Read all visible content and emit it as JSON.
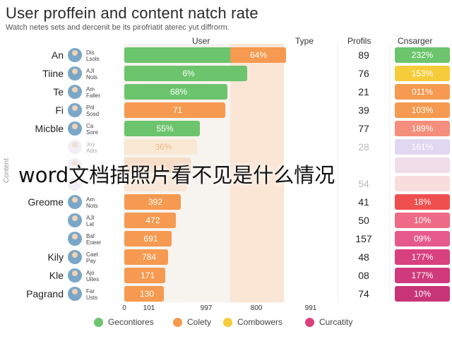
{
  "chart_data": {
    "type": "bar",
    "title": "User proffein and content natch rate",
    "subtitle": "Watch netes sets and dercenit be its pirofriatit aterec yut diffrorm.",
    "columns": {
      "user": "User",
      "type": "Type",
      "profile": "Profils",
      "category": "Cnsarger"
    },
    "ylabel": "Content",
    "x_ticks": [
      "0",
      "101",
      "997",
      "800",
      "991"
    ],
    "rows": [
      {
        "label": "An",
        "name": "Dis Lsols",
        "value": "",
        "overlay": "64%",
        "profile": "89",
        "badge": "232%",
        "bar_color": "#6cc46c",
        "badge_color": "#6cc46c"
      },
      {
        "label": "Tiine",
        "name": "AJI Nols",
        "value": "6%",
        "overlay": "",
        "profile": "76",
        "badge": "153%",
        "bar_color": "#6cc46c",
        "badge_color": "#f7cc3a"
      },
      {
        "label": "Te",
        "name": "Am Faller",
        "value": "68%",
        "overlay": "",
        "profile": "21",
        "badge": "011%",
        "bar_color": "#6cc46c",
        "badge_color": "#f59a50"
      },
      {
        "label": "Fi",
        "name": "Pril Sosd",
        "value": "71",
        "overlay": "",
        "profile": "39",
        "badge": "103%",
        "bar_color": "#f59a50",
        "badge_color": "#f59a50"
      },
      {
        "label": "Micble",
        "name": "Ca Sore",
        "value": "55%",
        "overlay": "",
        "profile": "77",
        "badge": "189%",
        "bar_color": "#6cc46c",
        "badge_color": "#f58e7c"
      },
      {
        "label": "",
        "name": "Joy Adis",
        "value": "36%",
        "overlay": "",
        "profile": "28",
        "badge": "161%",
        "bar_color": "#fbe0c0",
        "badge_color": "#cdbde8"
      },
      {
        "label": "",
        "name": "",
        "value": "",
        "overlay": "",
        "profile": "",
        "badge": "",
        "bar_color": "#f7c9a6",
        "badge_color": "#e8c4dc"
      },
      {
        "label": "",
        "name": "",
        "value": "",
        "overlay": "",
        "profile": "54",
        "badge": "",
        "bar_color": "#f9dcc4",
        "badge_color": "#f3c6c6"
      },
      {
        "label": "Greome",
        "name": "Am Nots",
        "value": "392",
        "overlay": "",
        "profile": "41",
        "badge": "18%",
        "bar_color": "#f59a50",
        "badge_color": "#ef4f4f"
      },
      {
        "label": "",
        "name": "AJI Lat",
        "value": "472",
        "overlay": "",
        "profile": "50",
        "badge": "10%",
        "bar_color": "#f59a50",
        "badge_color": "#ef6a86"
      },
      {
        "label": "",
        "name": "Baf Eoeer",
        "value": "691",
        "overlay": "",
        "profile": "157",
        "badge": "09%",
        "bar_color": "#f59a50",
        "badge_color": "#e55a8a"
      },
      {
        "label": "Kily",
        "name": "Caet Pay",
        "value": "784",
        "overlay": "",
        "profile": "48",
        "badge": "177%",
        "bar_color": "#f59a50",
        "badge_color": "#d9407e"
      },
      {
        "label": "Kle",
        "name": "Ajo Uites",
        "value": "171",
        "overlay": "",
        "profile": "08",
        "badge": "177%",
        "bar_color": "#f59a50",
        "badge_color": "#d03a7c"
      },
      {
        "label": "Pagrand",
        "name": "Far Usts",
        "value": "130",
        "overlay": "",
        "profile": "74",
        "badge": "10%",
        "bar_color": "#f59a50",
        "badge_color": "#c83478"
      }
    ],
    "legend": [
      {
        "name": "Gecontiores",
        "color": "#6cc46c"
      },
      {
        "name": "Colety",
        "color": "#f59a50"
      },
      {
        "name": "Combowers",
        "color": "#f7cc3a"
      },
      {
        "name": "Curcatity",
        "color": "#d9407e"
      }
    ]
  },
  "watermark": "word文档插照片看不见是什么情况"
}
